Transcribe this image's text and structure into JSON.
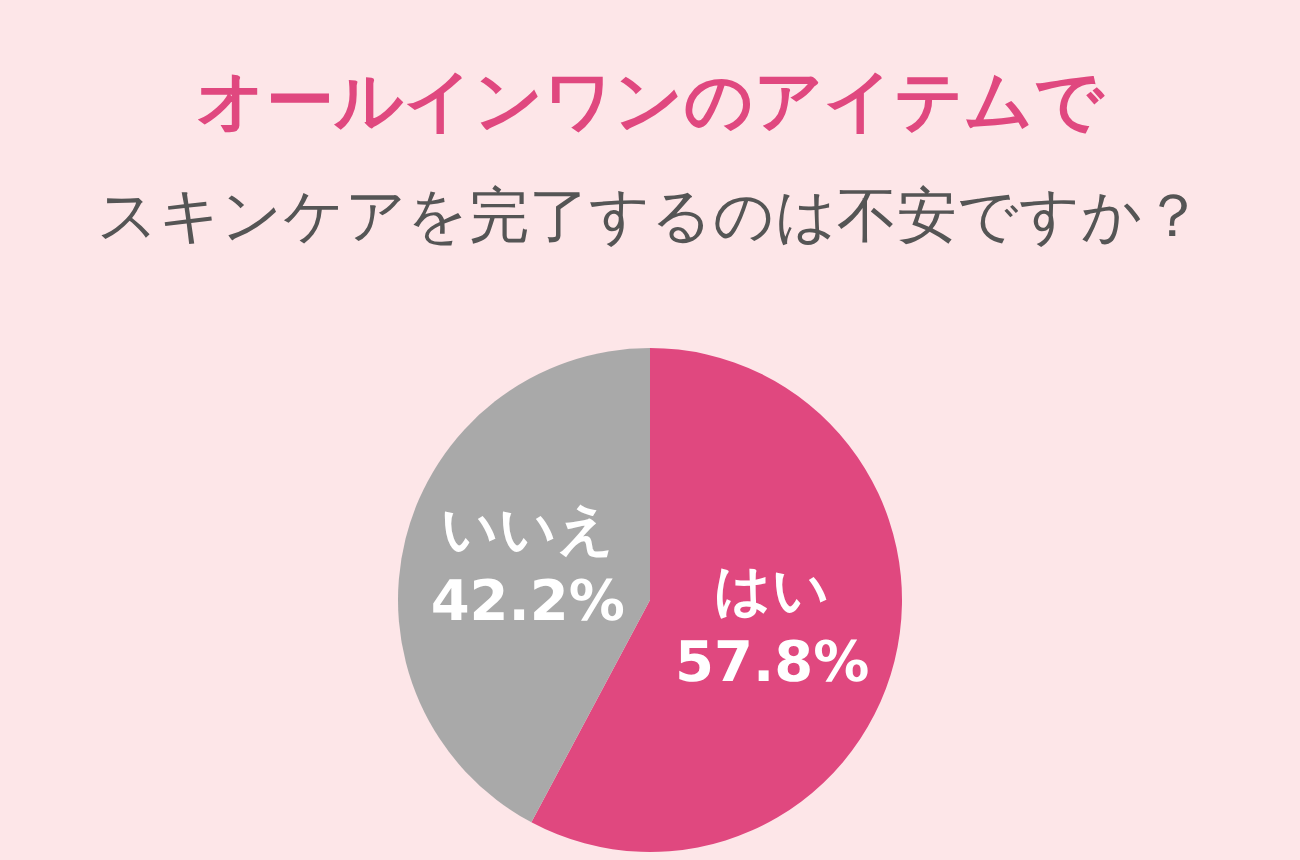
{
  "chart_data": {
    "type": "pie",
    "title": "オールインワンのアイテムで",
    "subtitle": "スキンケアを完了するのは不安ですか？",
    "categories": [
      "はい",
      "いいえ"
    ],
    "values": [
      57.8,
      42.2
    ],
    "colors": [
      "#e0487f",
      "#a9a9a9"
    ],
    "value_labels": [
      "57.8%",
      "42.2%"
    ],
    "legend": false
  }
}
